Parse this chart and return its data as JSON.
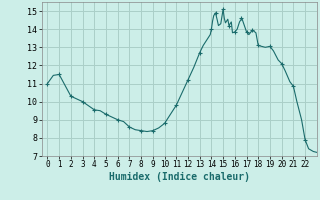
{
  "x": [
    0,
    0.5,
    1,
    2,
    3,
    4,
    4.5,
    5,
    5.5,
    6,
    6.5,
    7,
    7.5,
    8,
    8.5,
    9,
    9.5,
    10,
    10.5,
    11,
    11.5,
    12,
    12.5,
    13,
    13.3,
    13.6,
    13.9,
    14.0,
    14.1,
    14.2,
    14.35,
    14.5,
    14.6,
    14.8,
    15.0,
    15.1,
    15.2,
    15.4,
    15.5,
    15.7,
    15.8,
    16.0,
    16.2,
    16.4,
    16.5,
    16.6,
    17.0,
    17.2,
    17.5,
    17.8,
    18.0,
    18.3,
    18.6,
    19.0,
    19.3,
    19.7,
    20.0,
    20.3,
    20.7,
    21.0,
    21.3,
    21.7,
    22.0,
    22.3,
    22.7,
    23.0
  ],
  "y": [
    11.0,
    11.45,
    11.5,
    10.3,
    10.0,
    9.55,
    9.5,
    9.3,
    9.15,
    9.0,
    8.9,
    8.6,
    8.45,
    8.4,
    8.35,
    8.4,
    8.55,
    8.8,
    9.3,
    9.8,
    10.5,
    11.2,
    11.9,
    12.7,
    13.1,
    13.4,
    13.7,
    14.0,
    14.45,
    14.75,
    14.9,
    14.5,
    14.2,
    14.3,
    15.1,
    14.6,
    14.35,
    14.55,
    14.2,
    14.4,
    13.8,
    13.85,
    14.0,
    14.4,
    14.5,
    14.6,
    13.85,
    13.7,
    13.95,
    13.8,
    13.1,
    13.05,
    13.0,
    13.05,
    12.8,
    12.3,
    12.1,
    11.7,
    11.1,
    10.85,
    10.0,
    9.0,
    7.9,
    7.4,
    7.25,
    7.2
  ],
  "marker_x": [
    0,
    1,
    2,
    3,
    4,
    5,
    6,
    7,
    8,
    9,
    10,
    11,
    12,
    13,
    14,
    14.35,
    15,
    15.5,
    16,
    16.5,
    17,
    17.5,
    18,
    19,
    20,
    21,
    22
  ],
  "marker_y": [
    11.0,
    11.5,
    10.3,
    10.0,
    9.55,
    9.3,
    9.0,
    8.6,
    8.4,
    8.4,
    8.8,
    9.8,
    11.2,
    12.7,
    14.0,
    14.9,
    15.1,
    14.2,
    13.85,
    14.6,
    13.85,
    13.95,
    13.1,
    13.05,
    12.1,
    10.85,
    7.9
  ],
  "line_color": "#1a6b6b",
  "marker_color": "#1a6b6b",
  "bg_color": "#cceee8",
  "grid_color": "#aacfc8",
  "xlabel": "Humidex (Indice chaleur)",
  "xlim": [
    -0.5,
    23.0
  ],
  "ylim": [
    7,
    15.5
  ],
  "yticks": [
    7,
    8,
    9,
    10,
    11,
    12,
    13,
    14,
    15
  ],
  "xticks": [
    0,
    1,
    2,
    3,
    4,
    5,
    6,
    7,
    8,
    9,
    10,
    11,
    12,
    13,
    14,
    15,
    16,
    17,
    18,
    19,
    20,
    21,
    22
  ],
  "xlabel_fontsize": 7,
  "tick_fontsize": 5.5,
  "ytick_fontsize": 6
}
